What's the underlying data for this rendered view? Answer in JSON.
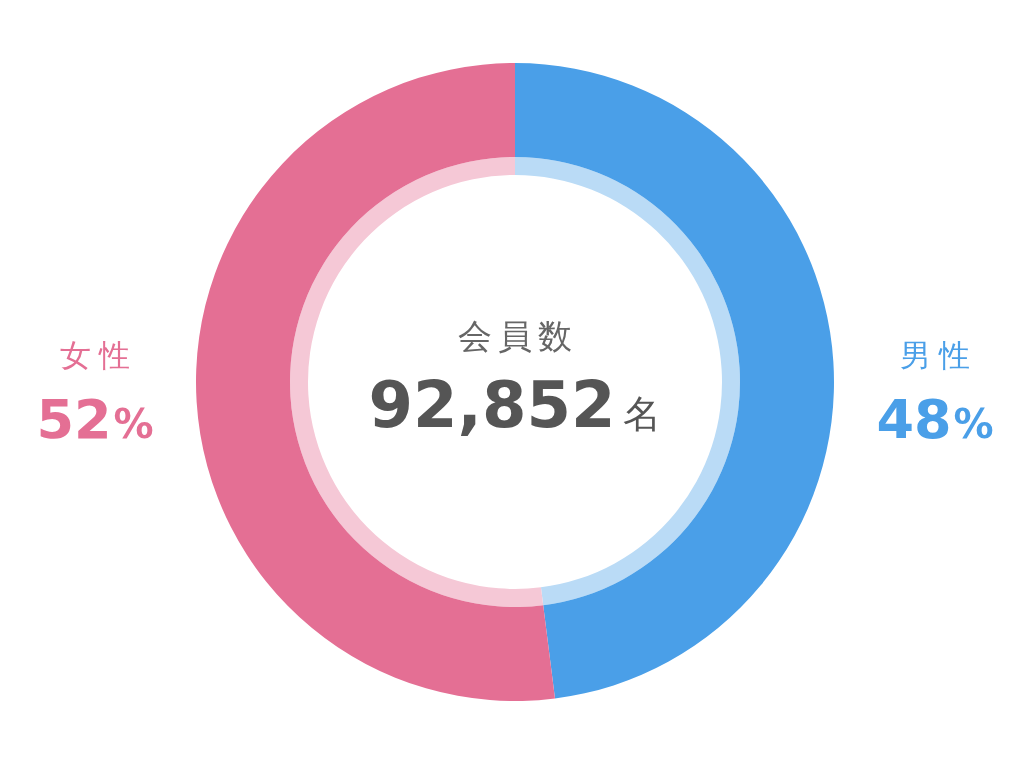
{
  "chart_data": {
    "type": "donut",
    "categories": [
      "男性",
      "女性"
    ],
    "series": [
      {
        "values": [
          48,
          52
        ],
        "colors": [
          "#badbf6",
          "#f5c8d6"
        ]
      },
      {
        "values": [
          48,
          52
        ],
        "colors": [
          "#4a9fe8",
          "#e46f94"
        ],
        "value_labels": [
          "48%",
          "52%"
        ]
      }
    ],
    "annotations": [
      "会員数",
      "92,852名"
    ]
  }
}
